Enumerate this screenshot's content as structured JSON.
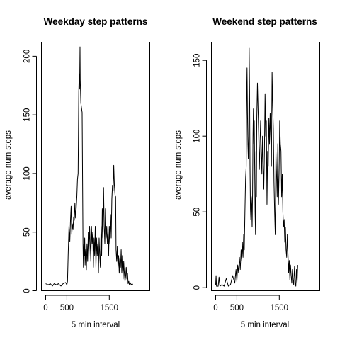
{
  "chart_data": [
    {
      "type": "line",
      "title": "Weekday step patterns",
      "xlabel": "5 min interval",
      "ylabel": "average num steps",
      "xlim": [
        -100,
        2455
      ],
      "ylim": [
        0,
        212
      ],
      "xticks": [
        0,
        500,
        1500
      ],
      "yticks": [
        0,
        50,
        100,
        150,
        200
      ],
      "grid": false,
      "series": [
        {
          "color": "#000000",
          "points": [
            [
              0,
              6
            ],
            [
              60,
              5
            ],
            [
              110,
              6
            ],
            [
              160,
              4
            ],
            [
              200,
              6
            ],
            [
              260,
              5
            ],
            [
              300,
              6
            ],
            [
              360,
              4
            ],
            [
              410,
              6
            ],
            [
              470,
              7
            ],
            [
              500,
              5
            ],
            [
              515,
              8
            ],
            [
              530,
              30
            ],
            [
              550,
              55
            ],
            [
              570,
              42
            ],
            [
              585,
              60
            ],
            [
              600,
              72
            ],
            [
              615,
              48
            ],
            [
              630,
              57
            ],
            [
              645,
              52
            ],
            [
              660,
              63
            ],
            [
              675,
              60
            ],
            [
              690,
              75
            ],
            [
              705,
              62
            ],
            [
              720,
              70
            ],
            [
              735,
              80
            ],
            [
              750,
              95
            ],
            [
              765,
              100
            ],
            [
              780,
              170
            ],
            [
              790,
              185
            ],
            [
              800,
              172
            ],
            [
              810,
              208
            ],
            [
              815,
              180
            ],
            [
              830,
              160
            ],
            [
              845,
              156
            ],
            [
              860,
              152
            ],
            [
              870,
              95
            ],
            [
              880,
              40
            ],
            [
              890,
              20
            ],
            [
              900,
              40
            ],
            [
              910,
              30
            ],
            [
              920,
              45
            ],
            [
              930,
              22
            ],
            [
              945,
              35
            ],
            [
              960,
              18
            ],
            [
              975,
              40
            ],
            [
              990,
              25
            ],
            [
              1005,
              50
            ],
            [
              1020,
              30
            ],
            [
              1035,
              55
            ],
            [
              1050,
              40
            ],
            [
              1065,
              25
            ],
            [
              1080,
              55
            ],
            [
              1095,
              40
            ],
            [
              1110,
              50
            ],
            [
              1125,
              20
            ],
            [
              1140,
              45
            ],
            [
              1155,
              30
            ],
            [
              1170,
              55
            ],
            [
              1185,
              20
            ],
            [
              1200,
              45
            ],
            [
              1215,
              30
            ],
            [
              1230,
              40
            ],
            [
              1245,
              15
            ],
            [
              1260,
              45
            ],
            [
              1275,
              30
            ],
            [
              1290,
              20
            ],
            [
              1305,
              55
            ],
            [
              1320,
              30
            ],
            [
              1335,
              70
            ],
            [
              1350,
              45
            ],
            [
              1365,
              88
            ],
            [
              1380,
              55
            ],
            [
              1395,
              40
            ],
            [
              1410,
              70
            ],
            [
              1425,
              45
            ],
            [
              1440,
              55
            ],
            [
              1455,
              40
            ],
            [
              1470,
              50
            ],
            [
              1485,
              30
            ],
            [
              1500,
              55
            ],
            [
              1515,
              40
            ],
            [
              1530,
              65
            ],
            [
              1545,
              45
            ],
            [
              1560,
              78
            ],
            [
              1575,
              90
            ],
            [
              1590,
              85
            ],
            [
              1605,
              107
            ],
            [
              1620,
              90
            ],
            [
              1635,
              82
            ],
            [
              1650,
              80
            ],
            [
              1660,
              35
            ],
            [
              1675,
              25
            ],
            [
              1690,
              38
            ],
            [
              1705,
              20
            ],
            [
              1720,
              30
            ],
            [
              1735,
              15
            ],
            [
              1750,
              28
            ],
            [
              1765,
              20
            ],
            [
              1780,
              35
            ],
            [
              1795,
              15
            ],
            [
              1810,
              30
            ],
            [
              1825,
              10
            ],
            [
              1840,
              25
            ],
            [
              1855,
              15
            ],
            [
              1870,
              8
            ],
            [
              1885,
              12
            ],
            [
              1900,
              20
            ],
            [
              1915,
              10
            ],
            [
              1930,
              15
            ],
            [
              1945,
              6
            ],
            [
              1960,
              8
            ],
            [
              1975,
              5
            ],
            [
              1990,
              7
            ],
            [
              2005,
              6
            ],
            [
              2020,
              5
            ],
            [
              2040,
              6
            ],
            [
              2055,
              5
            ]
          ]
        }
      ]
    },
    {
      "type": "line",
      "title": "Weekend step patterns",
      "xlabel": "5 min interval",
      "ylabel": "average num steps",
      "xlim": [
        -100,
        2455
      ],
      "ylim": [
        -2,
        162
      ],
      "xticks": [
        0,
        500,
        1500
      ],
      "yticks": [
        0,
        50,
        100,
        150
      ],
      "grid": false,
      "series": [
        {
          "color": "#000000",
          "points": [
            [
              0,
              2
            ],
            [
              10,
              8
            ],
            [
              20,
              1
            ],
            [
              60,
              1
            ],
            [
              80,
              7
            ],
            [
              100,
              1
            ],
            [
              150,
              2
            ],
            [
              200,
              1
            ],
            [
              250,
              6
            ],
            [
              300,
              1
            ],
            [
              350,
              2
            ],
            [
              400,
              8
            ],
            [
              450,
              3
            ],
            [
              480,
              12
            ],
            [
              500,
              4
            ],
            [
              520,
              15
            ],
            [
              540,
              10
            ],
            [
              560,
              20
            ],
            [
              580,
              12
            ],
            [
              600,
              25
            ],
            [
              615,
              18
            ],
            [
              630,
              30
            ],
            [
              645,
              20
            ],
            [
              660,
              35
            ],
            [
              675,
              25
            ],
            [
              690,
              50
            ],
            [
              705,
              72
            ],
            [
              720,
              80
            ],
            [
              730,
              125
            ],
            [
              740,
              145
            ],
            [
              750,
              115
            ],
            [
              760,
              95
            ],
            [
              770,
              85
            ],
            [
              780,
              100
            ],
            [
              790,
              158
            ],
            [
              800,
              130
            ],
            [
              810,
              80
            ],
            [
              820,
              52
            ],
            [
              830,
              45
            ],
            [
              840,
              60
            ],
            [
              850,
              55
            ],
            [
              860,
              40
            ],
            [
              870,
              62
            ],
            [
              880,
              100
            ],
            [
              890,
              118
            ],
            [
              900,
              95
            ],
            [
              910,
              110
            ],
            [
              920,
              80
            ],
            [
              930,
              50
            ],
            [
              940,
              35
            ],
            [
              950,
              90
            ],
            [
              960,
              60
            ],
            [
              970,
              112
            ],
            [
              985,
              135
            ],
            [
              1000,
              118
            ],
            [
              1015,
              100
            ],
            [
              1030,
              78
            ],
            [
              1045,
              95
            ],
            [
              1060,
              110
            ],
            [
              1075,
              90
            ],
            [
              1090,
              75
            ],
            [
              1105,
              100
            ],
            [
              1120,
              80
            ],
            [
              1135,
              65
            ],
            [
              1150,
              90
            ],
            [
              1165,
              128
            ],
            [
              1180,
              100
            ],
            [
              1195,
              110
            ],
            [
              1210,
              55
            ],
            [
              1225,
              90
            ],
            [
              1240,
              80
            ],
            [
              1255,
              112
            ],
            [
              1270,
              95
            ],
            [
              1285,
              115
            ],
            [
              1300,
              100
            ],
            [
              1315,
              80
            ],
            [
              1330,
              142
            ],
            [
              1345,
              120
            ],
            [
              1360,
              105
            ],
            [
              1375,
              70
            ],
            [
              1390,
              50
            ],
            [
              1405,
              35
            ],
            [
              1420,
              90
            ],
            [
              1435,
              75
            ],
            [
              1450,
              60
            ],
            [
              1465,
              95
            ],
            [
              1480,
              55
            ],
            [
              1495,
              75
            ],
            [
              1510,
              110
            ],
            [
              1525,
              95
            ],
            [
              1540,
              90
            ],
            [
              1555,
              60
            ],
            [
              1570,
              75
            ],
            [
              1585,
              50
            ],
            [
              1600,
              40
            ],
            [
              1615,
              45
            ],
            [
              1630,
              30
            ],
            [
              1645,
              40
            ],
            [
              1660,
              25
            ],
            [
              1675,
              20
            ],
            [
              1690,
              35
            ],
            [
              1705,
              22
            ],
            [
              1720,
              10
            ],
            [
              1735,
              18
            ],
            [
              1750,
              5
            ],
            [
              1765,
              15
            ],
            [
              1780,
              8
            ],
            [
              1795,
              3
            ],
            [
              1810,
              12
            ],
            [
              1825,
              5
            ],
            [
              1840,
              2
            ],
            [
              1860,
              14
            ],
            [
              1875,
              3
            ],
            [
              1890,
              1
            ],
            [
              1905,
              12
            ],
            [
              1920,
              3
            ],
            [
              1935,
              15
            ]
          ]
        }
      ]
    }
  ]
}
